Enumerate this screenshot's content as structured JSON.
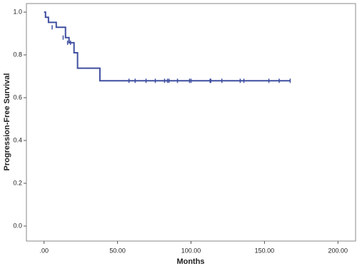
{
  "chart_data": {
    "type": "step",
    "x_label": "Months",
    "y_label": "Progression-Free Survival",
    "series": [
      {
        "color": "#3f4fa0",
        "x": [
          0,
          1,
          3,
          8.3,
          14.6,
          17,
          20.4,
          22.8,
          38,
          167.5
        ],
        "values": [
          1.0,
          0.976,
          0.952,
          0.929,
          0.881,
          0.857,
          0.81,
          0.738,
          0.679,
          0.679
        ],
        "censored_x": [
          5.5,
          13,
          16,
          18,
          57.8,
          62,
          69.4,
          75.7,
          82,
          84,
          85,
          90.8,
          99,
          100,
          113,
          113.5,
          121,
          133.5,
          136,
          153,
          160,
          167.5
        ],
        "censored_values": [
          0.929,
          0.881,
          0.857,
          0.857,
          0.679,
          0.679,
          0.679,
          0.679,
          0.679,
          0.679,
          0.679,
          0.679,
          0.679,
          0.679,
          0.679,
          0.679,
          0.679,
          0.679,
          0.679,
          0.679,
          0.679,
          0.679
        ]
      }
    ],
    "xlim": [
      -12,
      212
    ],
    "ylim": [
      -0.07,
      1.04
    ],
    "xticks": [
      {
        "value": 0,
        "label": ".00"
      },
      {
        "value": 50,
        "label": "50.00"
      },
      {
        "value": 100,
        "label": "100.00"
      },
      {
        "value": 150,
        "label": "150.00"
      },
      {
        "value": 200,
        "label": "200.00"
      }
    ],
    "yticks": [
      {
        "value": 0,
        "label": "0.0"
      },
      0.2,
      0.4,
      0.6,
      0.8,
      {
        "value": 1,
        "label": "1.0"
      }
    ]
  }
}
